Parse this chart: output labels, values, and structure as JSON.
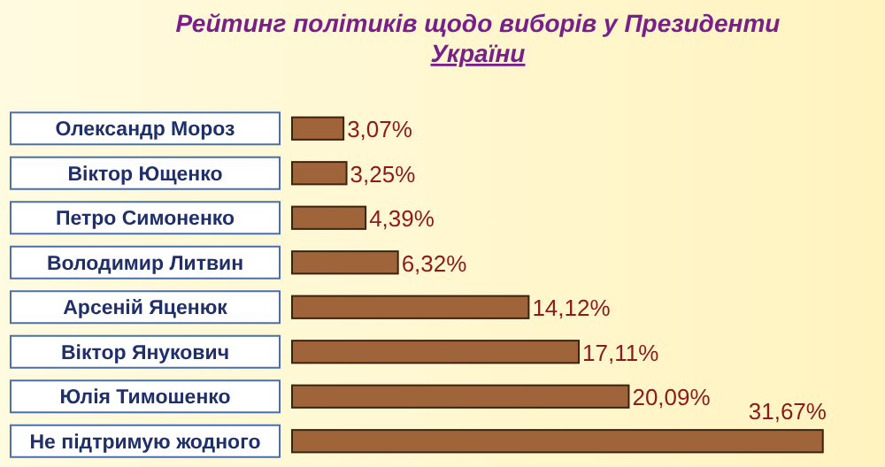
{
  "chart_data": {
    "type": "bar",
    "orientation": "horizontal",
    "title": "Рейтинг політиків щодо виборів у Президенти\nУкраїни",
    "categories": [
      "Олександр Мороз",
      "Віктор Ющенко",
      "Петро Симоненко",
      "Володимир Литвин",
      "Арсеній Яценюк",
      "Віктор Янукович",
      "Юлія Тимошенко",
      "Не підтримую  жодного"
    ],
    "values": [
      3.07,
      3.25,
      4.39,
      6.32,
      14.12,
      17.11,
      20.09,
      31.67
    ],
    "value_labels": [
      "3,07%",
      "3,25%",
      "4,39%",
      "6,32%",
      "14,12%",
      "17,11%",
      "20,09%",
      "31,67%"
    ],
    "color": "#a0643a",
    "xlim": [
      0,
      32
    ],
    "tick_labels": "y"
  }
}
